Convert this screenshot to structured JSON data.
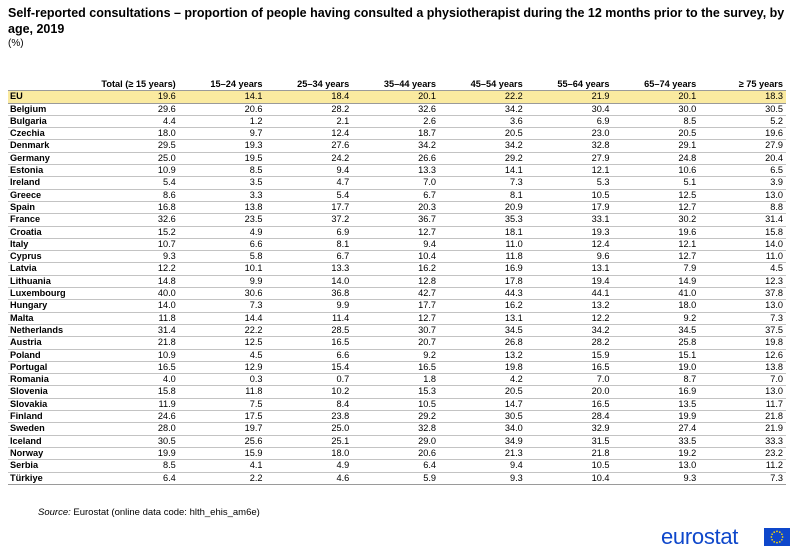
{
  "title": "Self-reported consultations – proportion of people having consulted a physiotherapist during the 12 months prior to the survey, by age, 2019",
  "unit": "(%)",
  "source_label": "Source:",
  "source_text": "Eurostat (online data code: hlth_ehis_am6e)",
  "logo_text": "eurostat",
  "colors": {
    "highlight_row": "#faeaa0",
    "logo_blue": "#0e47cb",
    "flag_stars": "#ffdd00"
  },
  "icons": {
    "logo": "eu-flag-icon"
  },
  "chart_data": {
    "type": "table",
    "columns": [
      "Total (≥ 15 years)",
      "15–24 years",
      "25–34 years",
      "35–44 years",
      "45–54 years",
      "55–64 years",
      "65–74 years",
      "≥ 75 years"
    ],
    "rows": [
      {
        "label": "EU",
        "values": [
          "19.6",
          "14.1",
          "18.4",
          "20.1",
          "22.2",
          "21.9",
          "20.1",
          "18.3"
        ]
      },
      {
        "label": "Belgium",
        "values": [
          "29.6",
          "20.6",
          "28.2",
          "32.6",
          "34.2",
          "30.4",
          "30.0",
          "30.5"
        ]
      },
      {
        "label": "Bulgaria",
        "values": [
          "4.4",
          "1.2",
          "2.1",
          "2.6",
          "3.6",
          "6.9",
          "8.5",
          "5.2"
        ]
      },
      {
        "label": "Czechia",
        "values": [
          "18.0",
          "9.7",
          "12.4",
          "18.7",
          "20.5",
          "23.0",
          "20.5",
          "19.6"
        ]
      },
      {
        "label": "Denmark",
        "values": [
          "29.5",
          "19.3",
          "27.6",
          "34.2",
          "34.2",
          "32.8",
          "29.1",
          "27.9"
        ]
      },
      {
        "label": "Germany",
        "values": [
          "25.0",
          "19.5",
          "24.2",
          "26.6",
          "29.2",
          "27.9",
          "24.8",
          "20.4"
        ]
      },
      {
        "label": "Estonia",
        "values": [
          "10.9",
          "8.5",
          "9.4",
          "13.3",
          "14.1",
          "12.1",
          "10.6",
          "6.5"
        ]
      },
      {
        "label": "Ireland",
        "values": [
          "5.4",
          "3.5",
          "4.7",
          "7.0",
          "7.3",
          "5.3",
          "5.1",
          "3.9"
        ]
      },
      {
        "label": "Greece",
        "values": [
          "8.6",
          "3.3",
          "5.4",
          "6.7",
          "8.1",
          "10.5",
          "12.5",
          "13.0"
        ]
      },
      {
        "label": "Spain",
        "values": [
          "16.8",
          "13.8",
          "17.7",
          "20.3",
          "20.9",
          "17.9",
          "12.7",
          "8.8"
        ]
      },
      {
        "label": "France",
        "values": [
          "32.6",
          "23.5",
          "37.2",
          "36.7",
          "35.3",
          "33.1",
          "30.2",
          "31.4"
        ]
      },
      {
        "label": "Croatia",
        "values": [
          "15.2",
          "4.9",
          "6.9",
          "12.7",
          "18.1",
          "19.3",
          "19.6",
          "15.8"
        ]
      },
      {
        "label": "Italy",
        "values": [
          "10.7",
          "6.6",
          "8.1",
          "9.4",
          "11.0",
          "12.4",
          "12.1",
          "14.0"
        ]
      },
      {
        "label": "Cyprus",
        "values": [
          "9.3",
          "5.8",
          "6.7",
          "10.4",
          "11.8",
          "9.6",
          "12.7",
          "11.0"
        ]
      },
      {
        "label": "Latvia",
        "values": [
          "12.2",
          "10.1",
          "13.3",
          "16.2",
          "16.9",
          "13.1",
          "7.9",
          "4.5"
        ]
      },
      {
        "label": "Lithuania",
        "values": [
          "14.8",
          "9.9",
          "14.0",
          "12.8",
          "17.8",
          "19.4",
          "14.9",
          "12.3"
        ]
      },
      {
        "label": "Luxembourg",
        "values": [
          "40.0",
          "30.6",
          "36.8",
          "42.7",
          "44.3",
          "44.1",
          "41.0",
          "37.8"
        ]
      },
      {
        "label": "Hungary",
        "values": [
          "14.0",
          "7.3",
          "9.9",
          "17.7",
          "16.2",
          "13.2",
          "18.0",
          "13.0"
        ]
      },
      {
        "label": "Malta",
        "values": [
          "11.8",
          "14.4",
          "11.4",
          "12.7",
          "13.1",
          "12.2",
          "9.2",
          "7.3"
        ]
      },
      {
        "label": "Netherlands",
        "values": [
          "31.4",
          "22.2",
          "28.5",
          "30.7",
          "34.5",
          "34.2",
          "34.5",
          "37.5"
        ]
      },
      {
        "label": "Austria",
        "values": [
          "21.8",
          "12.5",
          "16.5",
          "20.7",
          "26.8",
          "28.2",
          "25.8",
          "19.8"
        ]
      },
      {
        "label": "Poland",
        "values": [
          "10.9",
          "4.5",
          "6.6",
          "9.2",
          "13.2",
          "15.9",
          "15.1",
          "12.6"
        ]
      },
      {
        "label": "Portugal",
        "values": [
          "16.5",
          "12.9",
          "15.4",
          "16.5",
          "19.8",
          "16.5",
          "19.0",
          "13.8"
        ]
      },
      {
        "label": "Romania",
        "values": [
          "4.0",
          "0.3",
          "0.7",
          "1.8",
          "4.2",
          "7.0",
          "8.7",
          "7.0"
        ]
      },
      {
        "label": "Slovenia",
        "values": [
          "15.8",
          "11.8",
          "10.2",
          "15.3",
          "20.5",
          "20.0",
          "16.9",
          "13.0"
        ]
      },
      {
        "label": "Slovakia",
        "values": [
          "11.9",
          "7.5",
          "8.4",
          "10.5",
          "14.7",
          "16.5",
          "13.5",
          "11.7"
        ]
      },
      {
        "label": "Finland",
        "values": [
          "24.6",
          "17.5",
          "23.8",
          "29.2",
          "30.5",
          "28.4",
          "19.9",
          "21.8"
        ]
      },
      {
        "label": "Sweden",
        "values": [
          "28.0",
          "19.7",
          "25.0",
          "32.8",
          "34.0",
          "32.9",
          "27.4",
          "21.9"
        ]
      },
      {
        "label": "Iceland",
        "values": [
          "30.5",
          "25.6",
          "25.1",
          "29.0",
          "34.9",
          "31.5",
          "33.5",
          "33.3"
        ]
      },
      {
        "label": "Norway",
        "values": [
          "19.9",
          "15.9",
          "18.0",
          "20.6",
          "21.3",
          "21.8",
          "19.2",
          "23.2"
        ]
      },
      {
        "label": "Serbia",
        "values": [
          "8.5",
          "4.1",
          "4.9",
          "6.4",
          "9.4",
          "10.5",
          "13.0",
          "11.2"
        ]
      },
      {
        "label": "Türkiye",
        "values": [
          "6.4",
          "2.2",
          "4.6",
          "5.9",
          "9.3",
          "10.4",
          "9.3",
          "7.3"
        ]
      }
    ]
  }
}
